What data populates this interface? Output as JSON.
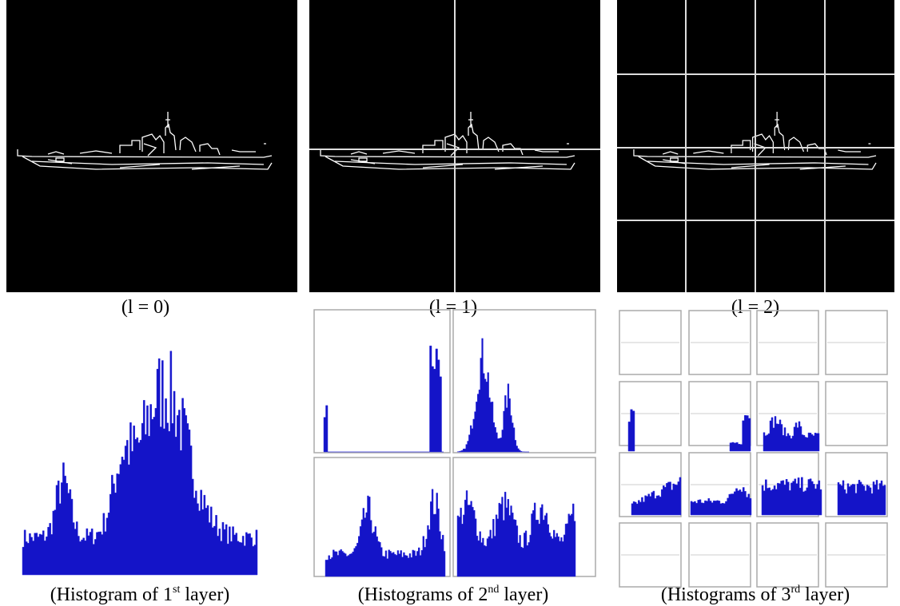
{
  "captions": [
    {
      "text": "(l  = 0)"
    },
    {
      "text": "(l = 1)"
    },
    {
      "text": "(l = 2)"
    },
    {
      "prefix": "(Histogram of 1",
      "sup": "st",
      "suffix": " layer)"
    },
    {
      "prefix": "(Histograms of 2",
      "sup": "nd",
      "suffix": " layer)"
    },
    {
      "prefix": "(Histograms of 3",
      "sup": "rd",
      "suffix": " layer)"
    }
  ]
}
